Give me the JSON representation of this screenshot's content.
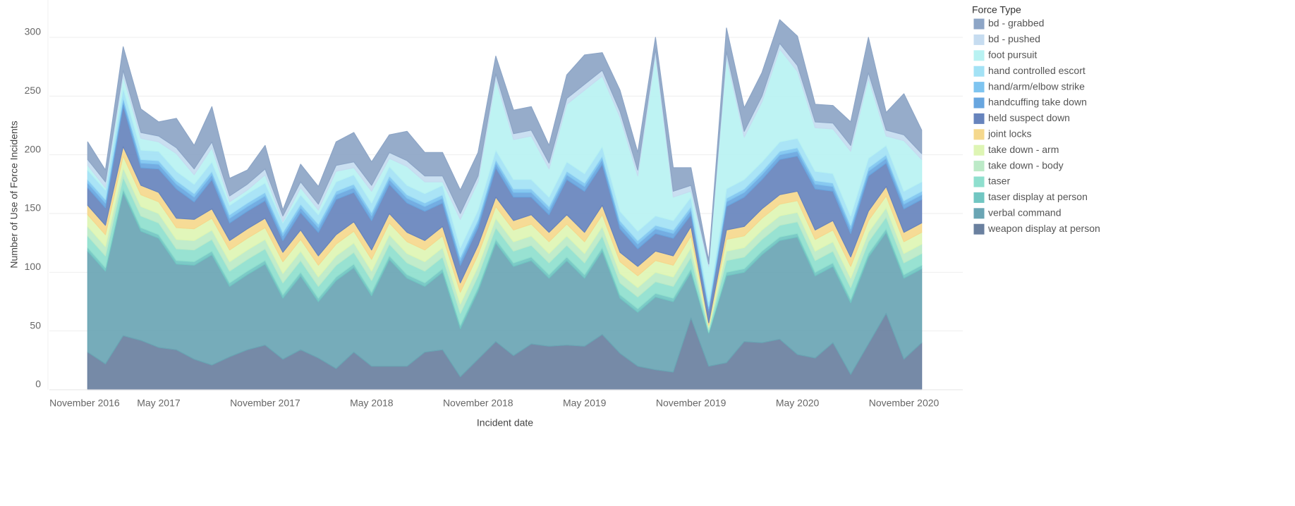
{
  "chart_data": {
    "type": "stacked-area",
    "x_label": "Incident date",
    "y_label": "Number of Use of Force Incidents",
    "legend_title": "Force Type",
    "legend_position": "right",
    "grid": true,
    "x": [
      "2017-01",
      "2017-02",
      "2017-03",
      "2017-04",
      "2017-05",
      "2017-06",
      "2017-07",
      "2017-08",
      "2017-09",
      "2017-10",
      "2017-11",
      "2017-12",
      "2018-01",
      "2018-02",
      "2018-03",
      "2018-04",
      "2018-05",
      "2018-06",
      "2018-07",
      "2018-08",
      "2018-09",
      "2018-10",
      "2018-11",
      "2018-12",
      "2019-01",
      "2019-02",
      "2019-03",
      "2019-04",
      "2019-05",
      "2019-06",
      "2019-07",
      "2019-08",
      "2019-09",
      "2019-10",
      "2019-11",
      "2019-12",
      "2020-01",
      "2020-02",
      "2020-03",
      "2020-04",
      "2020-05",
      "2020-06",
      "2020-07",
      "2020-08",
      "2020-09",
      "2020-10",
      "2020-11",
      "2020-12"
    ],
    "xlim": [
      "2016-11",
      "2021-02"
    ],
    "xticks": [
      {
        "value": "2016-11",
        "label": "November 2016"
      },
      {
        "value": "2017-05",
        "label": "May 2017"
      },
      {
        "value": "2017-11",
        "label": "November 2017"
      },
      {
        "value": "2018-05",
        "label": "May 2018"
      },
      {
        "value": "2018-11",
        "label": "November 2018"
      },
      {
        "value": "2019-05",
        "label": "May 2019"
      },
      {
        "value": "2019-11",
        "label": "November 2019"
      },
      {
        "value": "2020-05",
        "label": "May 2020"
      },
      {
        "value": "2020-11",
        "label": "November 2020"
      }
    ],
    "ylim": [
      0,
      330
    ],
    "yticks": [
      0,
      50,
      100,
      150,
      200,
      250,
      300
    ],
    "series": [
      {
        "name": "bd - grabbed",
        "color": "#8da5c6",
        "values": [
          15,
          10,
          20,
          20,
          12,
          25,
          20,
          30,
          15,
          12,
          20,
          5,
          15,
          15,
          20,
          25,
          20,
          15,
          25,
          20,
          20,
          20,
          20,
          15,
          20,
          20,
          15,
          20,
          25,
          15,
          18,
          15,
          10,
          20,
          15,
          3,
          20,
          20,
          20,
          20,
          25,
          15,
          15,
          20,
          30,
          15,
          35,
          20
        ]
      },
      {
        "name": "bd - pushed",
        "color": "#c6dcf0",
        "values": [
          5,
          5,
          5,
          5,
          5,
          5,
          5,
          5,
          5,
          5,
          5,
          5,
          5,
          5,
          5,
          5,
          5,
          5,
          5,
          5,
          5,
          5,
          5,
          5,
          5,
          5,
          5,
          5,
          5,
          5,
          5,
          5,
          5,
          5,
          5,
          2,
          5,
          5,
          5,
          5,
          5,
          5,
          5,
          5,
          5,
          5,
          5,
          5
        ]
      },
      {
        "name": "foot pursuit",
        "color": "#b8f2f2",
        "values": [
          4,
          2,
          10,
          10,
          8,
          15,
          8,
          12,
          3,
          3,
          7,
          1,
          6,
          4,
          9,
          6,
          10,
          7,
          16,
          10,
          3,
          24,
          24,
          60,
          34,
          37,
          24,
          49,
          71,
          60,
          80,
          47,
          137,
          20,
          5,
          30,
          112,
          36,
          51,
          79,
          57,
          37,
          38,
          55,
          68,
          8,
          43,
          19
        ]
      },
      {
        "name": "hand controlled escort",
        "color": "#a3e2f5",
        "values": [
          8,
          8,
          8,
          8,
          8,
          8,
          8,
          8,
          8,
          8,
          8,
          8,
          8,
          8,
          8,
          8,
          8,
          8,
          8,
          8,
          8,
          8,
          8,
          8,
          8,
          8,
          8,
          8,
          8,
          8,
          8,
          8,
          8,
          8,
          8,
          4,
          8,
          8,
          8,
          8,
          8,
          8,
          8,
          8,
          8,
          8,
          8,
          8
        ]
      },
      {
        "name": "hand/arm/elbow strike",
        "color": "#7ec4f0",
        "values": [
          3,
          3,
          3,
          3,
          3,
          3,
          3,
          3,
          3,
          3,
          3,
          3,
          3,
          3,
          3,
          3,
          3,
          3,
          3,
          3,
          3,
          3,
          3,
          3,
          3,
          3,
          3,
          3,
          3,
          3,
          3,
          3,
          3,
          3,
          3,
          2,
          3,
          3,
          3,
          3,
          3,
          3,
          3,
          3,
          3,
          3,
          3,
          3
        ]
      },
      {
        "name": "handcuffing take down",
        "color": "#68a6df",
        "values": [
          4,
          4,
          4,
          4,
          4,
          4,
          4,
          4,
          4,
          4,
          4,
          4,
          4,
          4,
          4,
          4,
          4,
          4,
          4,
          4,
          4,
          4,
          4,
          4,
          4,
          4,
          4,
          4,
          4,
          4,
          4,
          4,
          4,
          4,
          4,
          2,
          4,
          4,
          4,
          4,
          4,
          4,
          4,
          4,
          4,
          4,
          4,
          4
        ]
      },
      {
        "name": "held suspect down",
        "color": "#6784bd",
        "values": [
          15,
          15,
          35,
          15,
          20,
          25,
          15,
          25,
          15,
          15,
          15,
          10,
          15,
          20,
          30,
          25,
          25,
          25,
          25,
          25,
          20,
          15,
          15,
          25,
          20,
          15,
          15,
          30,
          35,
          35,
          20,
          15,
          15,
          15,
          10,
          10,
          20,
          25,
          25,
          30,
          30,
          35,
          25,
          20,
          30,
          20,
          20,
          20
        ]
      },
      {
        "name": "joint locks",
        "color": "#f5d88d",
        "values": [
          8,
          8,
          8,
          8,
          8,
          8,
          8,
          8,
          8,
          8,
          8,
          8,
          8,
          8,
          8,
          8,
          8,
          8,
          8,
          8,
          8,
          8,
          8,
          8,
          8,
          8,
          8,
          8,
          8,
          8,
          8,
          8,
          8,
          8,
          8,
          2,
          8,
          8,
          8,
          8,
          8,
          8,
          8,
          8,
          8,
          8,
          8,
          8
        ]
      },
      {
        "name": "take down - arm",
        "color": "#def5b4",
        "values": [
          10,
          10,
          10,
          10,
          10,
          10,
          10,
          10,
          10,
          10,
          10,
          10,
          10,
          10,
          10,
          10,
          10,
          10,
          10,
          10,
          10,
          10,
          10,
          10,
          10,
          10,
          10,
          10,
          10,
          10,
          10,
          10,
          10,
          10,
          10,
          2,
          10,
          10,
          10,
          10,
          10,
          10,
          10,
          10,
          10,
          10,
          10,
          10
        ]
      },
      {
        "name": "take down - body",
        "color": "#bceac7",
        "values": [
          8,
          8,
          8,
          8,
          8,
          8,
          8,
          8,
          8,
          8,
          8,
          8,
          8,
          8,
          8,
          8,
          8,
          8,
          8,
          8,
          8,
          8,
          8,
          8,
          8,
          8,
          8,
          8,
          8,
          8,
          8,
          8,
          8,
          8,
          8,
          2,
          8,
          8,
          8,
          8,
          8,
          8,
          8,
          8,
          8,
          8,
          8,
          8
        ]
      },
      {
        "name": "taser",
        "color": "#8fdfce",
        "values": [
          10,
          10,
          10,
          10,
          10,
          10,
          10,
          10,
          10,
          10,
          10,
          10,
          10,
          10,
          10,
          10,
          10,
          10,
          10,
          10,
          10,
          10,
          10,
          10,
          10,
          10,
          10,
          10,
          10,
          10,
          10,
          10,
          10,
          10,
          10,
          2,
          10,
          10,
          10,
          10,
          10,
          10,
          10,
          10,
          10,
          10,
          10,
          10
        ]
      },
      {
        "name": "taser display at person",
        "color": "#71c6c2",
        "values": [
          3,
          3,
          3,
          3,
          3,
          3,
          3,
          3,
          3,
          3,
          3,
          3,
          3,
          3,
          3,
          3,
          3,
          3,
          3,
          3,
          3,
          3,
          3,
          3,
          3,
          3,
          3,
          3,
          3,
          3,
          3,
          3,
          3,
          3,
          3,
          1,
          3,
          3,
          3,
          3,
          3,
          3,
          3,
          3,
          3,
          3,
          3,
          3
        ]
      },
      {
        "name": "verbal command",
        "color": "#6aa5b4",
        "values": [
          86,
          79,
          122,
          93,
          93,
          73,
          80,
          94,
          60,
          64,
          69,
          52,
          63,
          48,
          75,
          72,
          60,
          91,
          75,
          56,
          66,
          41,
          58,
          84,
          76,
          71,
          58,
          72,
          58,
          71,
          47,
          46,
          62,
          60,
          39,
          28,
          74,
          59,
          75,
          84,
          100,
          70,
          65,
          61,
          74,
          69,
          69,
          63
        ]
      },
      {
        "name": "weapon display at person",
        "color": "#6a809f",
        "values": [
          32,
          22,
          46,
          42,
          36,
          34,
          26,
          21,
          28,
          34,
          38,
          26,
          34,
          27,
          18,
          32,
          20,
          20,
          20,
          32,
          34,
          11,
          26,
          41,
          29,
          39,
          37,
          38,
          37,
          47,
          31,
          20,
          17,
          15,
          61,
          20,
          23,
          41,
          40,
          43,
          30,
          27,
          40,
          13,
          39,
          65,
          26,
          40
        ]
      }
    ]
  }
}
